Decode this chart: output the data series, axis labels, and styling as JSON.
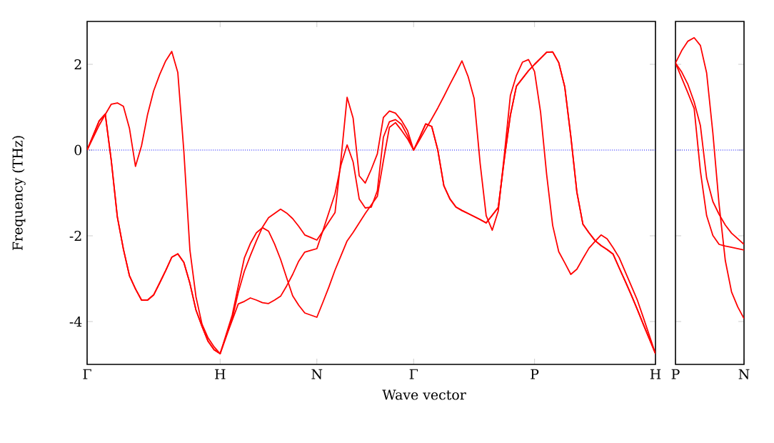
{
  "chart_data": [
    {
      "type": "line",
      "xlabel": "Wave vector",
      "ylabel": "Frequency (THz)",
      "ylim": [
        -5,
        3
      ],
      "categories": [
        "Γ",
        null,
        null,
        null,
        null,
        null,
        null,
        null,
        null,
        null,
        null,
        null,
        null,
        null,
        null,
        null,
        null,
        null,
        null,
        null,
        null,
        null,
        "H",
        null,
        null,
        null,
        null,
        null,
        null,
        null,
        null,
        null,
        null,
        null,
        null,
        null,
        null,
        null,
        "N",
        null,
        null,
        null,
        null,
        null,
        null,
        null,
        null,
        null,
        null,
        null,
        null,
        null,
        null,
        null,
        "Γ",
        null,
        null,
        null,
        null,
        null,
        null,
        null,
        null,
        null,
        null,
        null,
        null,
        null,
        null,
        null,
        null,
        null,
        null,
        null,
        "P",
        null,
        null,
        null,
        null,
        null,
        null,
        null,
        null,
        null,
        null,
        null,
        null,
        null,
        null,
        null,
        null,
        null,
        null,
        null,
        "H"
      ],
      "yticks": [
        -4,
        -2,
        0,
        2
      ],
      "ref_lines": [
        {
          "axis": "y",
          "value": 0,
          "color": "#0000ff",
          "line_style": "dotted"
        }
      ],
      "series": [
        {
          "color": "#ff0000",
          "values": [
            0,
            0.29,
            0.58,
            0.83,
            1.07,
            1.1,
            1.02,
            0.51,
            -0.38,
            0.1,
            0.83,
            1.38,
            1.76,
            2.08,
            2.3,
            1.81,
            -0.03,
            -2.33,
            -3.42,
            -4.06,
            -4.38,
            -4.59,
            -4.75,
            -4.3,
            -3.85,
            -3.18,
            -2.52,
            -2.18,
            -1.93,
            -1.81,
            -1.89,
            -2.19,
            -2.55,
            -2.98,
            -3.4,
            -3.62,
            -3.8,
            -3.85,
            -3.9,
            -3.55,
            -3.19,
            -2.8,
            -2.46,
            -2.12,
            -1.92,
            -1.7,
            -1.48,
            -1.28,
            -1.08,
            -0.25,
            0.53,
            0.64,
            0.46,
            0.26,
            0,
            0.24,
            0.49,
            0.73,
            0.98,
            1.25,
            1.53,
            1.8,
            2.08,
            1.72,
            1.21,
            -0.31,
            -1.53,
            -1.87,
            -1.42,
            -0.12,
            1.27,
            1.74,
            2.05,
            2.11,
            1.83,
            0.88,
            -0.57,
            -1.76,
            -2.37,
            -2.63,
            -2.9,
            -2.78,
            -2.53,
            -2.29,
            -2.13,
            -1.98,
            -2.07,
            -2.28,
            -2.51,
            -2.84,
            -3.17,
            -3.5,
            -3.91,
            -4.33,
            -4.75
          ]
        },
        {
          "color": "#ff0000",
          "values": [
            0,
            0.34,
            0.68,
            0.84,
            -0.25,
            -1.56,
            -2.31,
            -2.93,
            -3.24,
            -3.5,
            -3.5,
            -3.38,
            -3.1,
            -2.81,
            -2.5,
            -2.42,
            -2.62,
            -3.11,
            -3.73,
            -4.11,
            -4.46,
            -4.66,
            -4.75,
            -4.35,
            -3.93,
            -3.32,
            -2.83,
            -2.46,
            -2.12,
            -1.8,
            -1.58,
            -1.48,
            -1.38,
            -1.47,
            -1.6,
            -1.78,
            -1.98,
            -2.04,
            -2.1,
            -1.89,
            -1.67,
            -1.46,
            -0.2,
            1.23,
            0.74,
            -0.6,
            -0.77,
            -0.45,
            -0.09,
            0.76,
            0.91,
            0.86,
            0.69,
            0.45,
            0,
            0.3,
            0.61,
            0.55,
            0.0,
            -0.83,
            -1.14,
            -1.33,
            -1.41,
            -1.48,
            -1.55,
            -1.62,
            -1.7,
            -1.52,
            -1.34,
            -0.21,
            0.81,
            1.49,
            1.67,
            1.85,
            2.0,
            2.14,
            2.28,
            2.29,
            2.04,
            1.47,
            0.32,
            -0.98,
            -1.73,
            -1.93,
            -2.11,
            -2.23,
            -2.32,
            -2.43,
            -2.75,
            -3.06,
            -3.38,
            -3.72,
            -4.07,
            -4.41,
            -4.75
          ]
        },
        {
          "color": "#ff0000",
          "values": [
            0,
            0.34,
            0.68,
            0.84,
            -0.25,
            -1.56,
            -2.31,
            -2.93,
            -3.24,
            -3.5,
            -3.5,
            -3.38,
            -3.1,
            -2.81,
            -2.5,
            -2.42,
            -2.62,
            -3.11,
            -3.73,
            -4.11,
            -4.46,
            -4.66,
            -4.75,
            -4.35,
            -3.97,
            -3.59,
            -3.53,
            -3.45,
            -3.5,
            -3.56,
            -3.58,
            -3.5,
            -3.41,
            -3.17,
            -2.9,
            -2.59,
            -2.38,
            -2.34,
            -2.3,
            -1.88,
            -1.45,
            -1.02,
            -0.34,
            0.12,
            -0.28,
            -1.14,
            -1.35,
            -1.33,
            -0.95,
            0.3,
            0.66,
            0.71,
            0.6,
            0.33,
            0,
            0.3,
            0.61,
            0.55,
            0.0,
            -0.83,
            -1.14,
            -1.33,
            -1.41,
            -1.48,
            -1.55,
            -1.62,
            -1.7,
            -1.52,
            -1.34,
            -0.21,
            0.81,
            1.49,
            1.67,
            1.85,
            2.0,
            2.14,
            2.28,
            2.29,
            2.04,
            1.47,
            0.32,
            -0.98,
            -1.73,
            -1.93,
            -2.11,
            -2.23,
            -2.32,
            -2.43,
            -2.75,
            -3.06,
            -3.38,
            -3.72,
            -4.07,
            -4.41,
            -4.75
          ]
        }
      ]
    },
    {
      "type": "line",
      "ylim": [
        -5,
        3
      ],
      "tick_labels": "x",
      "categories": [
        "P",
        null,
        null,
        null,
        null,
        null,
        null,
        null,
        null,
        null,
        null,
        "N"
      ],
      "yticks": [
        -4,
        -2,
        0,
        2
      ],
      "ref_lines": [
        {
          "axis": "y",
          "value": 0,
          "color": "#0000ff",
          "line_style": "dotted"
        }
      ],
      "series": [
        {
          "color": "#ff0000",
          "values": [
            2.03,
            2.32,
            2.54,
            2.62,
            2.44,
            1.8,
            0.4,
            -1.27,
            -2.58,
            -3.31,
            -3.66,
            -3.93
          ]
        },
        {
          "color": "#ff0000",
          "values": [
            2.03,
            1.82,
            1.53,
            1.12,
            0.57,
            -0.65,
            -1.2,
            -1.5,
            -1.75,
            -1.94,
            -2.07,
            -2.2
          ]
        },
        {
          "color": "#ff0000",
          "values": [
            2.03,
            1.68,
            1.33,
            0.97,
            -0.49,
            -1.53,
            -1.99,
            -2.2,
            -2.24,
            -2.27,
            -2.3,
            -2.33
          ]
        }
      ]
    }
  ]
}
